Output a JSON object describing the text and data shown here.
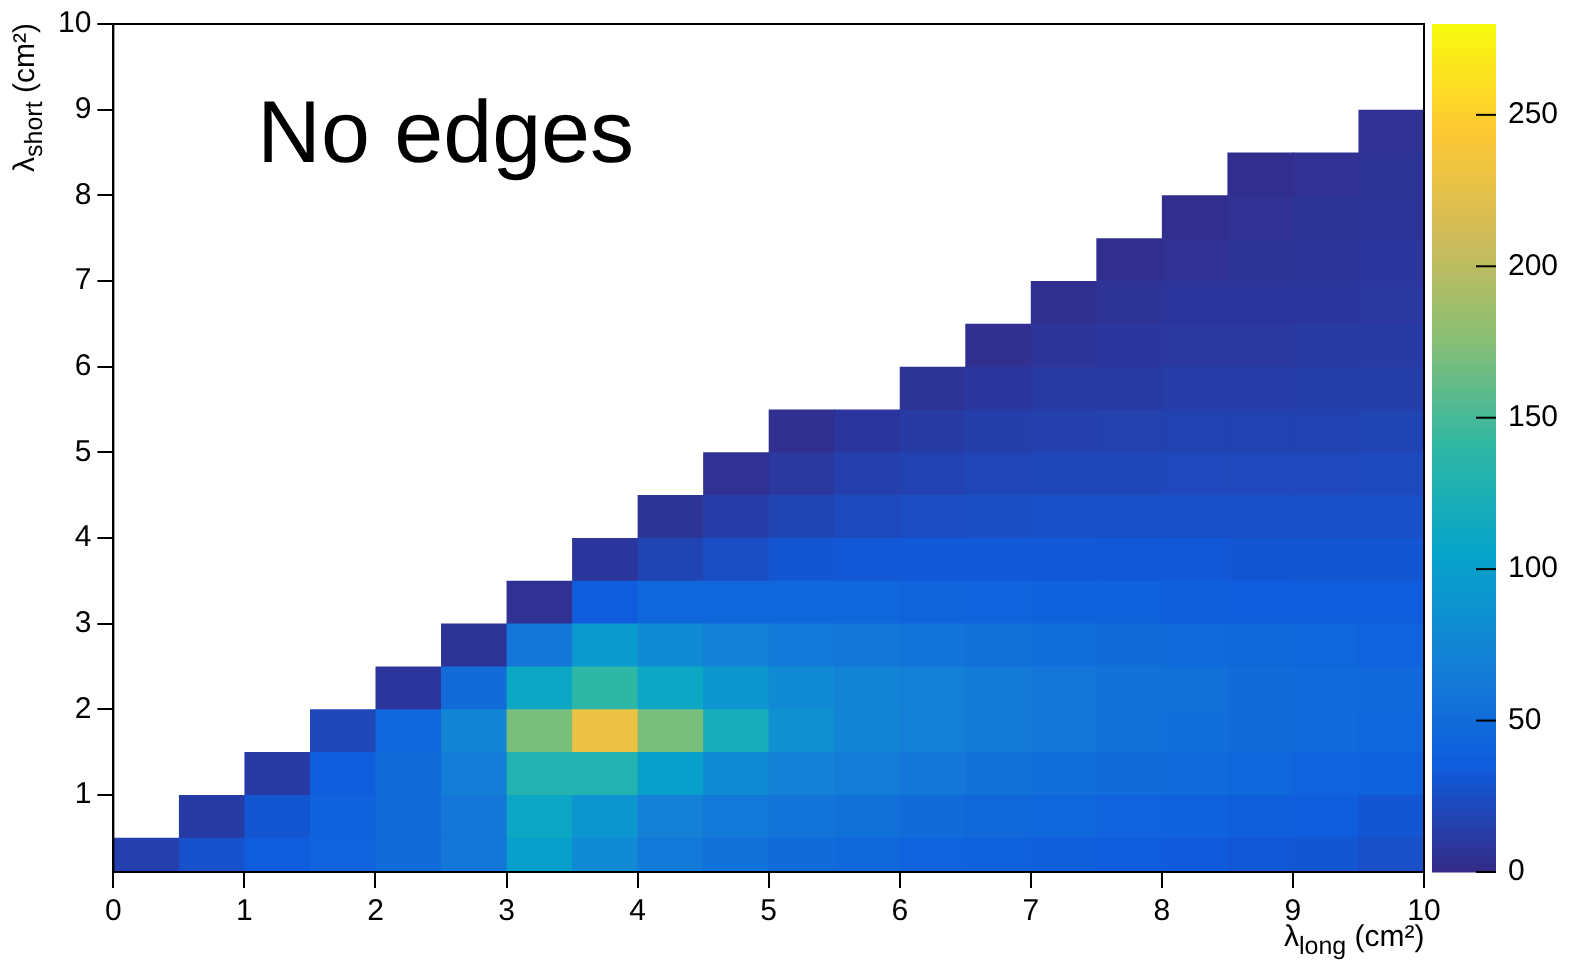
{
  "chart_data": {
    "type": "heatmap",
    "title": "No edges",
    "xlabel": "λ$_{long}$ (cm²)",
    "ylabel": "λ$_{short}$ (cm²)",
    "x": [
      0.25,
      0.75,
      1.25,
      1.75,
      2.25,
      2.75,
      3.25,
      3.75,
      4.25,
      4.75,
      5.25,
      5.75,
      6.25,
      6.75,
      7.25,
      7.75,
      8.25,
      8.75,
      9.25,
      9.75
    ],
    "y": [
      8.75,
      8.25,
      7.75,
      7.25,
      6.75,
      6.25,
      5.75,
      5.25,
      4.75,
      4.25,
      3.75,
      3.25,
      2.75,
      2.25,
      1.75,
      1.25,
      0.75,
      0.25
    ],
    "xlim": [
      0,
      10
    ],
    "ylim": [
      0.1,
      10
    ],
    "xticks": [
      0,
      1,
      2,
      3,
      4,
      5,
      6,
      7,
      8,
      9,
      10
    ],
    "yticks": [
      1,
      2,
      3,
      4,
      5,
      6,
      7,
      8,
      9,
      10
    ],
    "clim": [
      0,
      280
    ],
    "cticks": [
      0,
      50,
      100,
      150,
      200,
      250
    ],
    "colors": [
      "#352a87",
      "#0f5cdd",
      "#1481d6",
      "#06a4ca",
      "#2eb7a4",
      "#87bf77",
      "#d1bb59",
      "#fec832",
      "#f9fb0e"
    ],
    "cells": [
      [
        null,
        null,
        null,
        null,
        null,
        null,
        null,
        null,
        null,
        null,
        null,
        null,
        null,
        null,
        null,
        null,
        null,
        null,
        null,
        5
      ],
      [
        null,
        null,
        null,
        null,
        null,
        null,
        null,
        null,
        null,
        null,
        null,
        null,
        null,
        null,
        null,
        null,
        null,
        3,
        5,
        6
      ],
      [
        null,
        null,
        null,
        null,
        null,
        null,
        null,
        null,
        null,
        null,
        null,
        null,
        null,
        null,
        null,
        null,
        3,
        5,
        6,
        7
      ],
      [
        null,
        null,
        null,
        null,
        null,
        null,
        null,
        null,
        null,
        null,
        null,
        null,
        null,
        null,
        null,
        3,
        5,
        6,
        7,
        8
      ],
      [
        null,
        null,
        null,
        null,
        null,
        null,
        null,
        null,
        null,
        null,
        null,
        null,
        null,
        null,
        4,
        6,
        8,
        8,
        9,
        10
      ],
      [
        null,
        null,
        null,
        null,
        null,
        null,
        null,
        null,
        null,
        null,
        null,
        null,
        null,
        4,
        7,
        9,
        10,
        10,
        11,
        12
      ],
      [
        null,
        null,
        null,
        null,
        null,
        null,
        null,
        null,
        null,
        null,
        null,
        null,
        6,
        9,
        11,
        12,
        13,
        13,
        14,
        14
      ],
      [
        null,
        null,
        null,
        null,
        null,
        null,
        null,
        null,
        null,
        null,
        4,
        8,
        12,
        14,
        15,
        16,
        17,
        17,
        17,
        18
      ],
      [
        null,
        null,
        null,
        null,
        null,
        null,
        null,
        null,
        null,
        5,
        10,
        15,
        17,
        19,
        20,
        20,
        21,
        21,
        21,
        22
      ],
      [
        null,
        null,
        null,
        null,
        null,
        null,
        null,
        null,
        6,
        13,
        18,
        22,
        24,
        25,
        26,
        26,
        26,
        26,
        26,
        26
      ],
      [
        null,
        null,
        null,
        null,
        null,
        null,
        null,
        8,
        18,
        25,
        30,
        32,
        33,
        33,
        33,
        32,
        32,
        31,
        30,
        30
      ],
      [
        null,
        null,
        null,
        null,
        null,
        null,
        5,
        35,
        45,
        45,
        45,
        44,
        43,
        42,
        41,
        40,
        38,
        37,
        36,
        35
      ],
      [
        null,
        null,
        null,
        null,
        null,
        6,
        60,
        95,
        80,
        70,
        62,
        60,
        57,
        55,
        52,
        50,
        48,
        46,
        44,
        42
      ],
      [
        null,
        null,
        null,
        null,
        8,
        50,
        110,
        140,
        110,
        90,
        80,
        72,
        68,
        64,
        60,
        56,
        54,
        50,
        48,
        46
      ],
      [
        null,
        null,
        null,
        20,
        45,
        75,
        170,
        230,
        170,
        120,
        85,
        75,
        68,
        64,
        60,
        56,
        52,
        50,
        47,
        44
      ],
      [
        null,
        null,
        12,
        35,
        50,
        65,
        130,
        130,
        100,
        80,
        70,
        65,
        60,
        56,
        52,
        50,
        48,
        45,
        42,
        40
      ],
      [
        null,
        12,
        30,
        40,
        50,
        60,
        110,
        90,
        70,
        62,
        58,
        54,
        50,
        46,
        44,
        42,
        40,
        38,
        35,
        30
      ],
      [
        15,
        28,
        35,
        42,
        50,
        60,
        100,
        80,
        62,
        55,
        50,
        46,
        42,
        40,
        38,
        36,
        34,
        32,
        30,
        26
      ]
    ]
  }
}
